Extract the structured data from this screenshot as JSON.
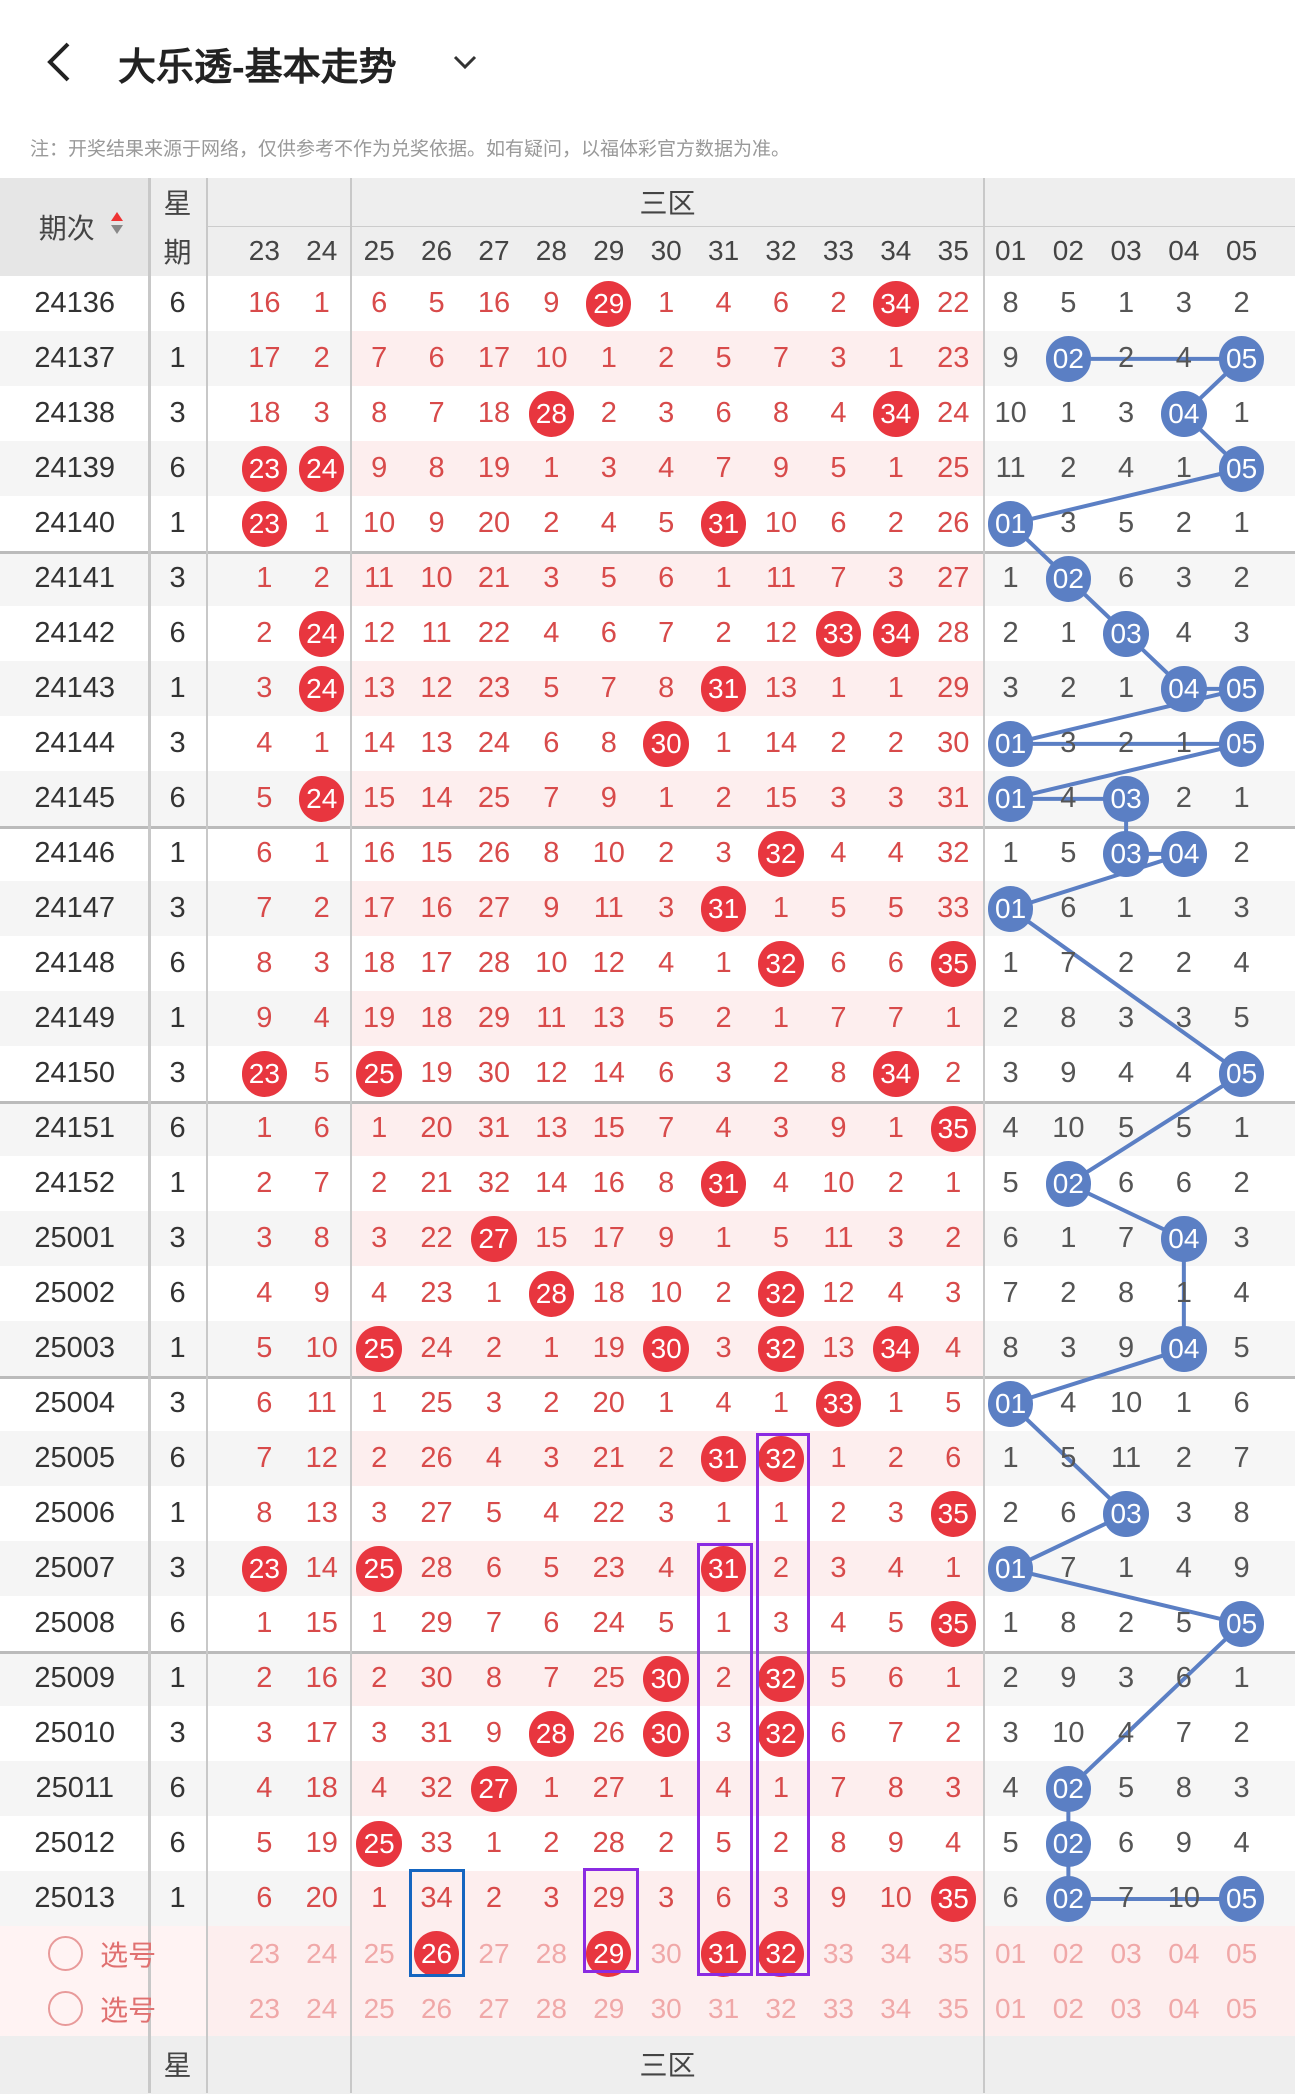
{
  "header": {
    "title": "大乐透-基本走势"
  },
  "note": "注：开奖结果来源于网络，仅供参考不作为兑奖依据。如有疑问，以福体彩官方数据为准。",
  "table": {
    "col_issue": "期次",
    "col_weekday_1": "星",
    "col_weekday_2": "期",
    "zone": "三区",
    "front_cols": [
      "23",
      "24",
      "25",
      "26",
      "27",
      "28",
      "29",
      "30",
      "31",
      "32",
      "33",
      "34",
      "35"
    ],
    "back_cols": [
      "01",
      "02",
      "03",
      "04",
      "05"
    ],
    "rows": [
      {
        "issue": 24136,
        "weekday": 6,
        "front": [
          16,
          1,
          6,
          5,
          16,
          9,
          "29",
          1,
          4,
          6,
          2,
          "34",
          22
        ],
        "back": [
          8,
          5,
          1,
          3,
          2
        ]
      },
      {
        "issue": 24137,
        "weekday": 1,
        "front": [
          17,
          2,
          7,
          6,
          17,
          10,
          1,
          2,
          5,
          7,
          3,
          1,
          23
        ],
        "back": [
          9,
          "02",
          2,
          4,
          "05"
        ]
      },
      {
        "issue": 24138,
        "weekday": 3,
        "front": [
          18,
          3,
          8,
          7,
          18,
          "28",
          2,
          3,
          6,
          8,
          4,
          "34",
          24
        ],
        "back": [
          10,
          1,
          3,
          "04",
          1
        ]
      },
      {
        "issue": 24139,
        "weekday": 6,
        "front": [
          "23",
          "24",
          9,
          8,
          19,
          1,
          3,
          4,
          7,
          9,
          5,
          1,
          25
        ],
        "back": [
          11,
          2,
          4,
          1,
          "05"
        ]
      },
      {
        "issue": 24140,
        "weekday": 1,
        "front": [
          "23",
          1,
          10,
          9,
          20,
          2,
          4,
          5,
          "31",
          10,
          6,
          2,
          26
        ],
        "back": [
          "01",
          3,
          5,
          2,
          1
        ]
      },
      {
        "issue": 24141,
        "weekday": 3,
        "front": [
          1,
          2,
          11,
          10,
          21,
          3,
          5,
          6,
          1,
          11,
          7,
          3,
          27
        ],
        "back": [
          1,
          "02",
          6,
          3,
          2
        ]
      },
      {
        "issue": 24142,
        "weekday": 6,
        "front": [
          2,
          "24",
          12,
          11,
          22,
          4,
          6,
          7,
          2,
          12,
          "33",
          "34",
          28
        ],
        "back": [
          2,
          1,
          "03",
          4,
          3
        ]
      },
      {
        "issue": 24143,
        "weekday": 1,
        "front": [
          3,
          "24",
          13,
          12,
          23,
          5,
          7,
          8,
          "31",
          13,
          1,
          1,
          29
        ],
        "back": [
          3,
          2,
          1,
          "04",
          "05"
        ]
      },
      {
        "issue": 24144,
        "weekday": 3,
        "front": [
          4,
          1,
          14,
          13,
          24,
          6,
          8,
          "30",
          1,
          14,
          2,
          2,
          30
        ],
        "back": [
          "01",
          3,
          2,
          1,
          "05"
        ]
      },
      {
        "issue": 24145,
        "weekday": 6,
        "front": [
          5,
          "24",
          15,
          14,
          25,
          7,
          9,
          1,
          2,
          15,
          3,
          3,
          31
        ],
        "back": [
          "01",
          4,
          "03",
          2,
          1
        ]
      },
      {
        "issue": 24146,
        "weekday": 1,
        "front": [
          6,
          1,
          16,
          15,
          26,
          8,
          10,
          2,
          3,
          "32",
          4,
          4,
          32
        ],
        "back": [
          1,
          5,
          "03",
          "04",
          2
        ]
      },
      {
        "issue": 24147,
        "weekday": 3,
        "front": [
          7,
          2,
          17,
          16,
          27,
          9,
          11,
          3,
          "31",
          1,
          5,
          5,
          33
        ],
        "back": [
          "01",
          6,
          1,
          1,
          3
        ]
      },
      {
        "issue": 24148,
        "weekday": 6,
        "front": [
          8,
          3,
          18,
          17,
          28,
          10,
          12,
          4,
          1,
          "32",
          6,
          6,
          "35"
        ],
        "back": [
          1,
          7,
          2,
          2,
          4
        ]
      },
      {
        "issue": 24149,
        "weekday": 1,
        "front": [
          9,
          4,
          19,
          18,
          29,
          11,
          13,
          5,
          2,
          1,
          7,
          7,
          1
        ],
        "back": [
          2,
          8,
          3,
          3,
          5
        ]
      },
      {
        "issue": 24150,
        "weekday": 3,
        "front": [
          "23",
          5,
          "25",
          19,
          30,
          12,
          14,
          6,
          3,
          2,
          8,
          "34",
          2
        ],
        "back": [
          3,
          9,
          4,
          4,
          "05"
        ]
      },
      {
        "issue": 24151,
        "weekday": 6,
        "front": [
          1,
          6,
          1,
          20,
          31,
          13,
          15,
          7,
          4,
          3,
          9,
          1,
          "35"
        ],
        "back": [
          4,
          10,
          5,
          5,
          1
        ]
      },
      {
        "issue": 24152,
        "weekday": 1,
        "front": [
          2,
          7,
          2,
          21,
          32,
          14,
          16,
          8,
          "31",
          4,
          10,
          2,
          1
        ],
        "back": [
          5,
          "02",
          6,
          6,
          2
        ]
      },
      {
        "issue": 25001,
        "weekday": 3,
        "front": [
          3,
          8,
          3,
          22,
          "27",
          15,
          17,
          9,
          1,
          5,
          11,
          3,
          2
        ],
        "back": [
          6,
          1,
          7,
          "04",
          3
        ]
      },
      {
        "issue": 25002,
        "weekday": 6,
        "front": [
          4,
          9,
          4,
          23,
          1,
          "28",
          18,
          10,
          2,
          "32",
          12,
          4,
          3
        ],
        "back": [
          7,
          2,
          8,
          1,
          4
        ]
      },
      {
        "issue": 25003,
        "weekday": 1,
        "front": [
          5,
          10,
          "25",
          24,
          2,
          1,
          19,
          "30",
          3,
          "32",
          13,
          "34",
          4
        ],
        "back": [
          8,
          3,
          9,
          "04",
          5
        ]
      },
      {
        "issue": 25004,
        "weekday": 3,
        "front": [
          6,
          11,
          1,
          25,
          3,
          2,
          20,
          1,
          4,
          1,
          "33",
          1,
          5
        ],
        "back": [
          "01",
          4,
          10,
          1,
          6
        ]
      },
      {
        "issue": 25005,
        "weekday": 6,
        "front": [
          7,
          12,
          2,
          26,
          4,
          3,
          21,
          2,
          "31",
          "32",
          1,
          2,
          6
        ],
        "back": [
          1,
          5,
          11,
          2,
          7
        ]
      },
      {
        "issue": 25006,
        "weekday": 1,
        "front": [
          8,
          13,
          3,
          27,
          5,
          4,
          22,
          3,
          1,
          1,
          2,
          3,
          "35"
        ],
        "back": [
          2,
          6,
          "03",
          3,
          8
        ]
      },
      {
        "issue": 25007,
        "weekday": 3,
        "front": [
          "23",
          14,
          "25",
          28,
          6,
          5,
          23,
          4,
          "31",
          2,
          3,
          4,
          1
        ],
        "back": [
          "01",
          7,
          1,
          4,
          9
        ]
      },
      {
        "issue": 25008,
        "weekday": 6,
        "front": [
          1,
          15,
          1,
          29,
          7,
          6,
          24,
          5,
          1,
          3,
          4,
          5,
          "35"
        ],
        "back": [
          1,
          8,
          2,
          5,
          "05"
        ]
      },
      {
        "issue": 25009,
        "weekday": 1,
        "front": [
          2,
          16,
          2,
          30,
          8,
          7,
          25,
          "30",
          2,
          "32",
          5,
          6,
          1
        ],
        "back": [
          2,
          9,
          3,
          6,
          1
        ]
      },
      {
        "issue": 25010,
        "weekday": 3,
        "front": [
          3,
          17,
          3,
          31,
          9,
          "28",
          26,
          "30",
          3,
          "32",
          6,
          7,
          2
        ],
        "back": [
          3,
          10,
          4,
          7,
          2
        ]
      },
      {
        "issue": 25011,
        "weekday": 6,
        "front": [
          4,
          18,
          4,
          32,
          "27",
          1,
          27,
          1,
          4,
          1,
          7,
          8,
          3
        ],
        "back": [
          4,
          "02",
          5,
          8,
          3
        ]
      },
      {
        "issue": 25012,
        "weekday": 6,
        "front": [
          5,
          19,
          "25",
          33,
          1,
          2,
          28,
          2,
          5,
          2,
          8,
          9,
          4
        ],
        "back": [
          5,
          "02",
          6,
          9,
          4
        ]
      },
      {
        "issue": 25013,
        "weekday": 1,
        "front": [
          6,
          20,
          1,
          34,
          2,
          3,
          29,
          3,
          6,
          3,
          9,
          10,
          "35"
        ],
        "back": [
          6,
          "02",
          7,
          10,
          "05"
        ]
      }
    ],
    "pick_label": "选号",
    "selected": [
      "26",
      "29",
      "31",
      "32"
    ]
  }
}
